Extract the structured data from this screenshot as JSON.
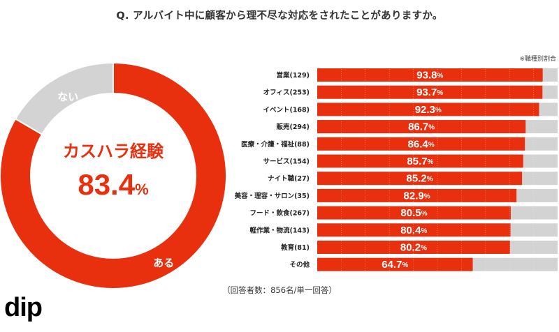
{
  "title": "Q. アルバイト中に顧客から理不尽な対応をされたことがありますか。",
  "note": "※職種別割合",
  "footnote": "（回答者数：856名/単一回答）",
  "brand": "dip",
  "colors": {
    "accent": "#e8300f",
    "remainder": "#d3d3d3"
  },
  "chart_data": [
    {
      "type": "pie",
      "donut": true,
      "center_label": "カスハラ経験",
      "center_value": "83.4",
      "center_unit": "%",
      "slices": [
        {
          "label": "ある",
          "value": 83.4,
          "color": "#e8300f"
        },
        {
          "label": "ない",
          "value": 16.6,
          "color": "#d3d3d3"
        }
      ]
    },
    {
      "type": "bar",
      "orientation": "horizontal",
      "stacked_to": 100,
      "xlim": [
        0,
        100
      ],
      "value_suffix": "%",
      "categories": [
        "営業(129)",
        "オフィス(253)",
        "イベント(168)",
        "販売(294)",
        "医療・介護・福祉(88)",
        "サービス(154)",
        "ナイト職(27)",
        "美容・理容・サロン(35)",
        "フード・飲食(267)",
        "軽作業・物流(143)",
        "教育(81)",
        "その他"
      ],
      "values": [
        93.8,
        93.7,
        92.3,
        86.7,
        86.4,
        85.7,
        85.2,
        82.9,
        80.5,
        80.4,
        80.2,
        64.7
      ]
    }
  ]
}
